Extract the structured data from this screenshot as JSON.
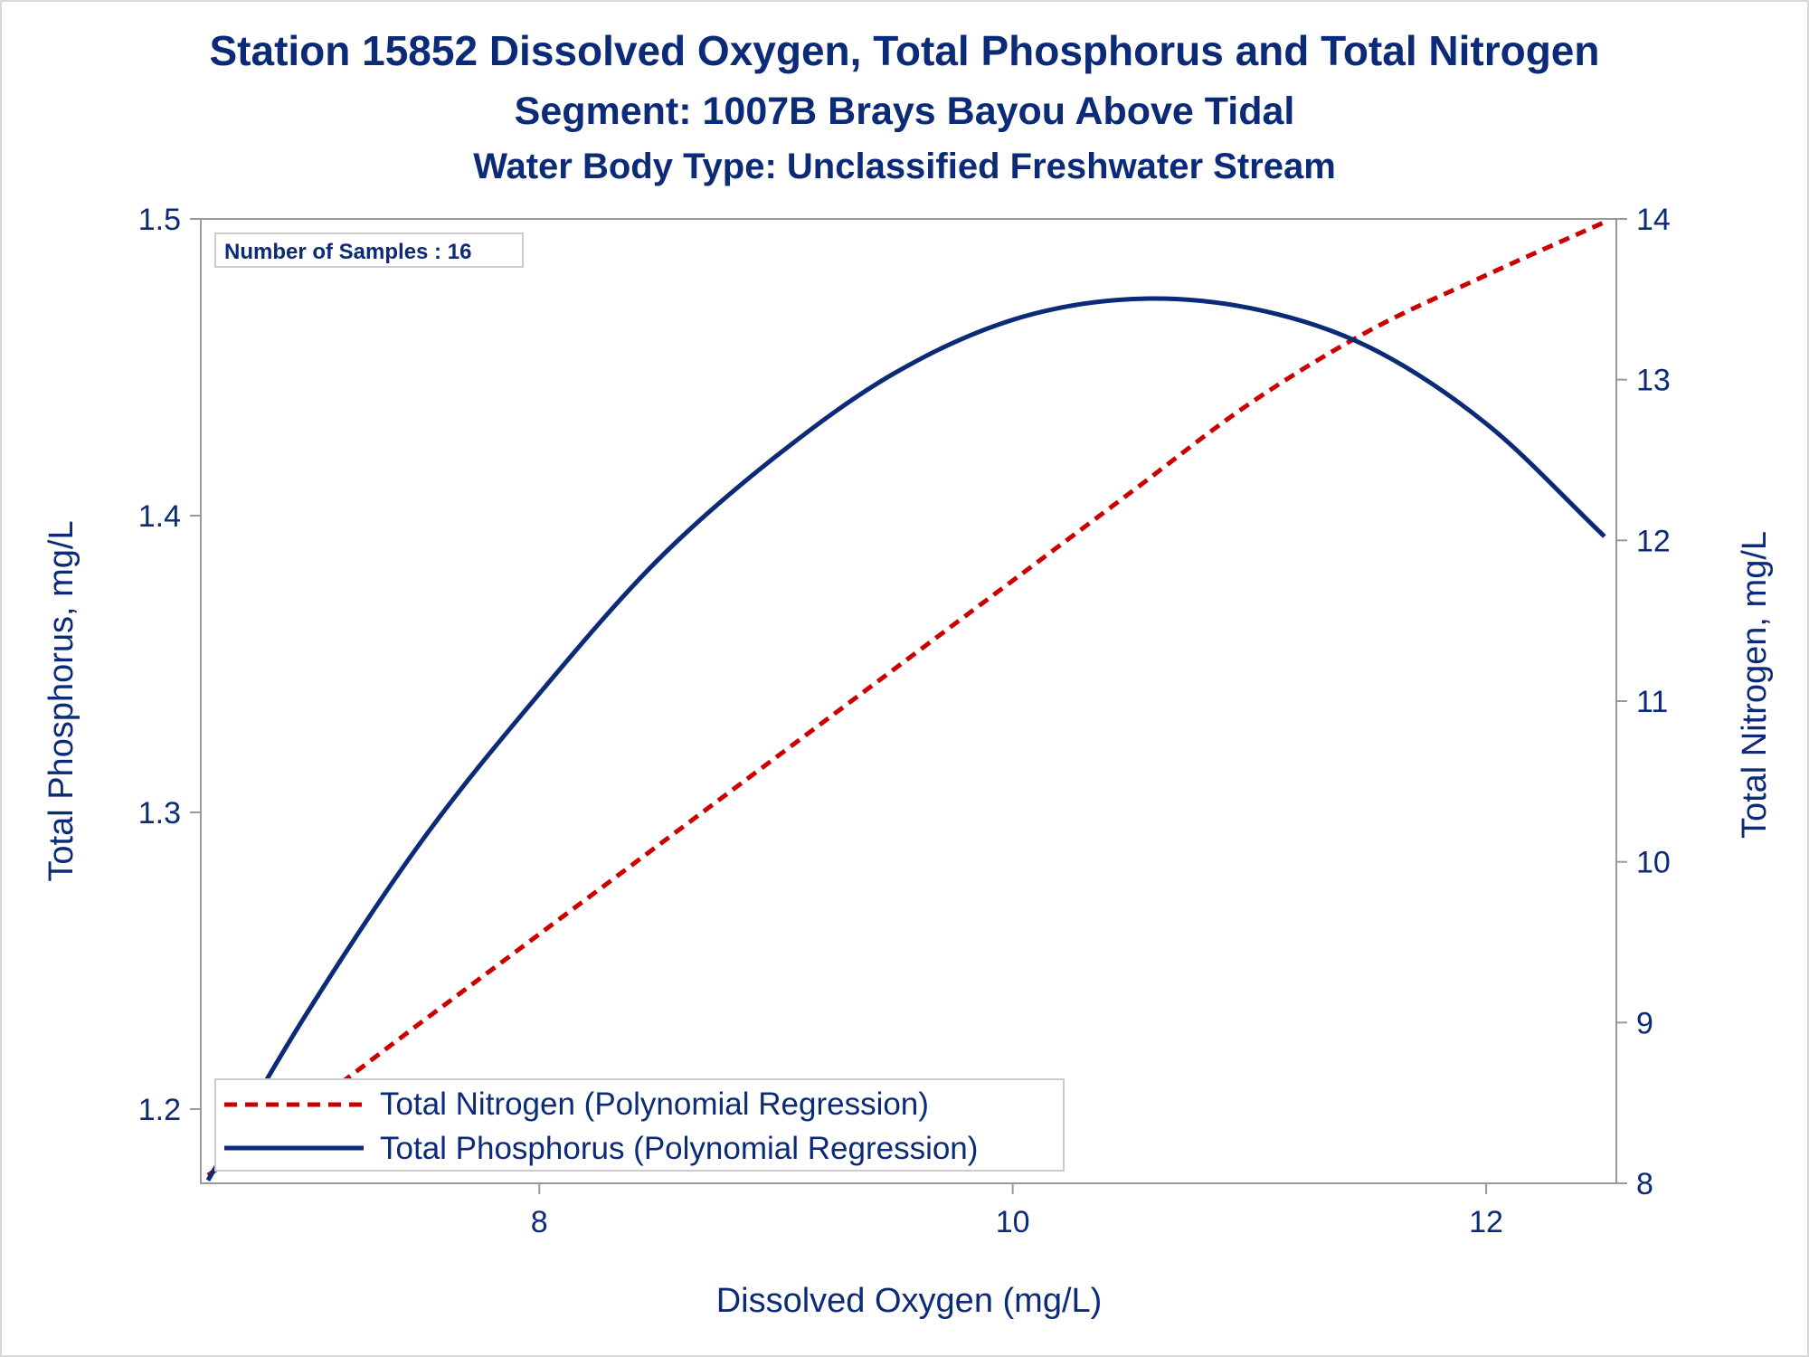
{
  "chart_data": {
    "type": "line",
    "title": "Station 15852  Dissolved Oxygen, Total Phosphorus and Total Nitrogen",
    "subtitle": "Segment: 1007B  Brays Bayou Above Tidal",
    "subtitle2": "Water Body Type: Unclassified Freshwater Stream",
    "xlabel": "Dissolved Oxygen (mg/L)",
    "ylabel_left": "Total Phosphorus, mg/L",
    "ylabel_right": "Total Nitrogen, mg/L",
    "sample_note": "Number of Samples : 16",
    "xlim": [
      6.57,
      12.55
    ],
    "ylim_left": [
      1.175,
      1.5
    ],
    "ylim_right": [
      8.0,
      14.0
    ],
    "x_ticks": [
      8,
      10,
      12
    ],
    "y_left_ticks": [
      1.2,
      1.3,
      1.4,
      1.5
    ],
    "y_right_ticks": [
      8,
      9,
      10,
      11,
      12,
      13,
      14
    ],
    "grid": false,
    "legend_position": "bottom-left",
    "series": [
      {
        "name": "Total Nitrogen (Polynomial Regression)",
        "axis": "right",
        "style": "dashed",
        "color": "#cc0000",
        "x": [
          6.6,
          7.0,
          7.5,
          8.0,
          8.5,
          9.0,
          9.5,
          10.0,
          10.5,
          11.0,
          11.5,
          12.0,
          12.5
        ],
        "y": [
          8.05,
          8.45,
          9.0,
          9.55,
          10.1,
          10.65,
          11.2,
          11.75,
          12.3,
          12.85,
          13.3,
          13.65,
          13.98
        ]
      },
      {
        "name": "Total Phosphorus (Polynomial Regression)",
        "axis": "left",
        "style": "solid",
        "color": "#0b2a78",
        "x": [
          6.6,
          7.0,
          7.5,
          8.0,
          8.5,
          9.0,
          9.5,
          10.0,
          10.5,
          11.0,
          11.5,
          12.0,
          12.5
        ],
        "y": [
          1.176,
          1.23,
          1.29,
          1.34,
          1.385,
          1.42,
          1.448,
          1.466,
          1.473,
          1.47,
          1.457,
          1.431,
          1.393
        ]
      }
    ]
  }
}
